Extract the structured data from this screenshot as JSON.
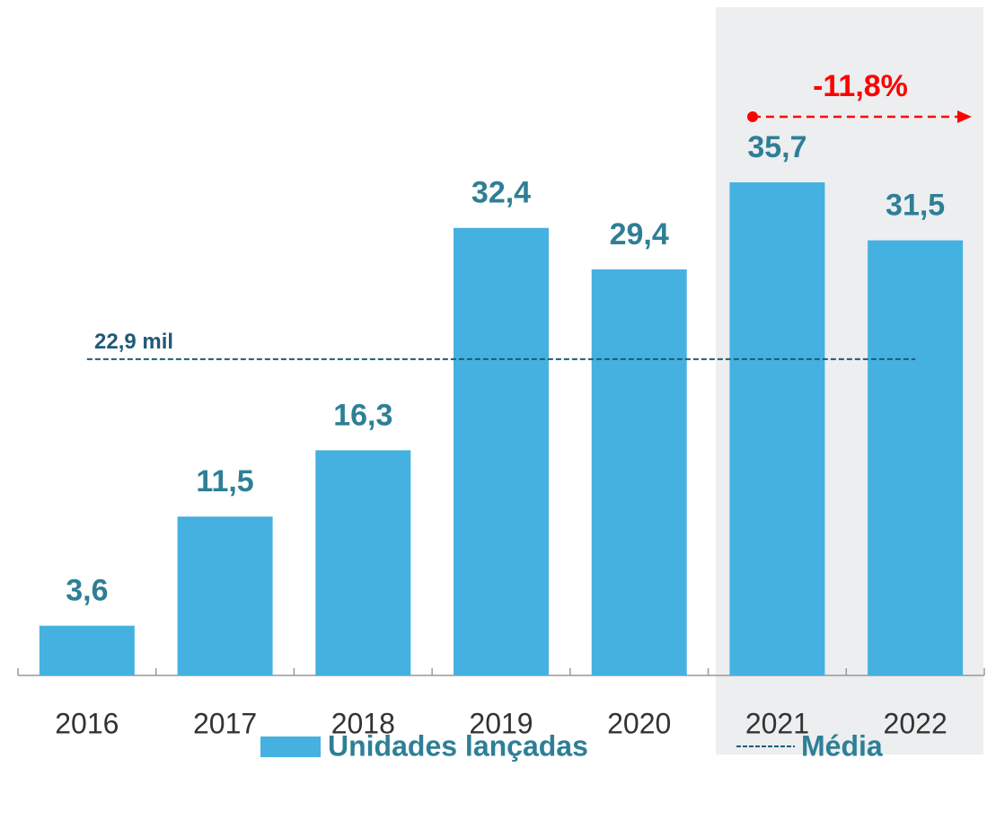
{
  "chart_data": {
    "type": "bar",
    "categories": [
      "2016",
      "2017",
      "2018",
      "2019",
      "2020",
      "2021",
      "2022"
    ],
    "series": [
      {
        "name": "Unidades lançadas",
        "color": "#45b1e0",
        "values": [
          3.6,
          11.5,
          16.3,
          32.4,
          29.4,
          35.7,
          31.5
        ],
        "value_labels": [
          "3,6",
          "11,5",
          "16,3",
          "32,4",
          "29,4",
          "35,7",
          "31,5"
        ]
      }
    ],
    "average": {
      "name": "Média",
      "value": 22.9,
      "label": "22,9 mil",
      "color": "#1f5a78"
    },
    "annotation": {
      "text": "-11,8%",
      "color": "#ff0000"
    },
    "ylim": [
      0,
      45
    ]
  }
}
